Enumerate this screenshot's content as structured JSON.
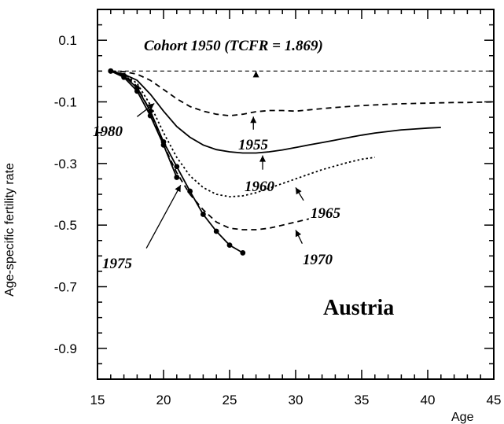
{
  "chart_data": {
    "type": "line",
    "xlabel": "Age",
    "ylabel": "Age-specific fertility rate",
    "xlim": [
      15,
      45
    ],
    "ylim": [
      -1.0,
      0.2
    ],
    "xticks": [
      15,
      20,
      25,
      30,
      35,
      40,
      45
    ],
    "yticks": [
      0.1,
      -0.1,
      -0.3,
      -0.5,
      -0.7,
      -0.9
    ],
    "xtick_labels": [
      "15",
      "20",
      "25",
      "30",
      "35",
      "40",
      "45"
    ],
    "ytick_labels": [
      "0.1",
      "-0.1",
      "-0.3",
      "-0.5",
      "-0.7",
      "-0.9"
    ],
    "country_label": "Austria",
    "series": [
      {
        "name": "Cohort 1950 (TCFR = 1.869)",
        "style": "thin-dash",
        "x": [
          16,
          45
        ],
        "y": [
          0.0,
          0.0
        ]
      },
      {
        "name": "1955",
        "style": "dash",
        "x": [
          16,
          17,
          18,
          19,
          20,
          21,
          22,
          23,
          24,
          25,
          26,
          27,
          28,
          29,
          30,
          31,
          32,
          33,
          34,
          35,
          36,
          37,
          38,
          39,
          40,
          41,
          42,
          43,
          44,
          45
        ],
        "y": [
          0.0,
          -0.002,
          -0.01,
          -0.03,
          -0.06,
          -0.09,
          -0.115,
          -0.13,
          -0.14,
          -0.145,
          -0.14,
          -0.132,
          -0.128,
          -0.128,
          -0.13,
          -0.126,
          -0.122,
          -0.118,
          -0.115,
          -0.112,
          -0.11,
          -0.108,
          -0.106,
          -0.105,
          -0.104,
          -0.103,
          -0.102,
          -0.102,
          -0.101,
          -0.1
        ]
      },
      {
        "name": "1960",
        "style": "solid",
        "x": [
          16,
          17,
          18,
          19,
          20,
          21,
          22,
          23,
          24,
          25,
          26,
          27,
          28,
          29,
          30,
          31,
          32,
          33,
          34,
          35,
          36,
          37,
          38,
          39,
          40,
          41
        ],
        "y": [
          0.0,
          -0.01,
          -0.03,
          -0.075,
          -0.13,
          -0.18,
          -0.215,
          -0.24,
          -0.255,
          -0.262,
          -0.266,
          -0.266,
          -0.262,
          -0.256,
          -0.248,
          -0.24,
          -0.232,
          -0.224,
          -0.216,
          -0.208,
          -0.201,
          -0.196,
          -0.191,
          -0.188,
          -0.185,
          -0.183
        ]
      },
      {
        "name": "1965",
        "style": "dot",
        "x": [
          16,
          17,
          18,
          19,
          20,
          21,
          22,
          23,
          24,
          25,
          26,
          27,
          28,
          29,
          30,
          31,
          32,
          33,
          34,
          35,
          36
        ],
        "y": [
          0.0,
          -0.01,
          -0.04,
          -0.11,
          -0.2,
          -0.28,
          -0.34,
          -0.378,
          -0.4,
          -0.408,
          -0.405,
          -0.395,
          -0.38,
          -0.365,
          -0.35,
          -0.335,
          -0.32,
          -0.308,
          -0.296,
          -0.286,
          -0.28
        ]
      },
      {
        "name": "1970",
        "style": "dash",
        "x": [
          16,
          17,
          18,
          19,
          20,
          21,
          22,
          23,
          24,
          25,
          26,
          27,
          28,
          29,
          30,
          31
        ],
        "y": [
          0.0,
          -0.01,
          -0.05,
          -0.13,
          -0.24,
          -0.33,
          -0.4,
          -0.45,
          -0.49,
          -0.51,
          -0.515,
          -0.515,
          -0.51,
          -0.5,
          -0.49,
          -0.48
        ]
      },
      {
        "name": "1975",
        "style": "solid",
        "x": [
          16,
          17,
          18,
          19,
          20,
          21,
          22,
          23,
          24,
          25,
          26
        ],
        "y": [
          0.0,
          -0.015,
          -0.055,
          -0.13,
          -0.23,
          -0.31,
          -0.39,
          -0.465,
          -0.52,
          -0.565,
          -0.59
        ],
        "markers": true
      },
      {
        "name": "1980",
        "style": "solid",
        "x": [
          16,
          17,
          18,
          19,
          20,
          21
        ],
        "y": [
          0.0,
          -0.02,
          -0.065,
          -0.145,
          -0.24,
          -0.345
        ],
        "markers": true
      }
    ],
    "annotations": [
      {
        "text": "Cohort 1950 (TCFR = 1.869)"
      },
      {
        "text": "1955"
      },
      {
        "text": "1960"
      },
      {
        "text": "1965"
      },
      {
        "text": "1970"
      },
      {
        "text": "1975"
      },
      {
        "text": "1980"
      }
    ]
  }
}
